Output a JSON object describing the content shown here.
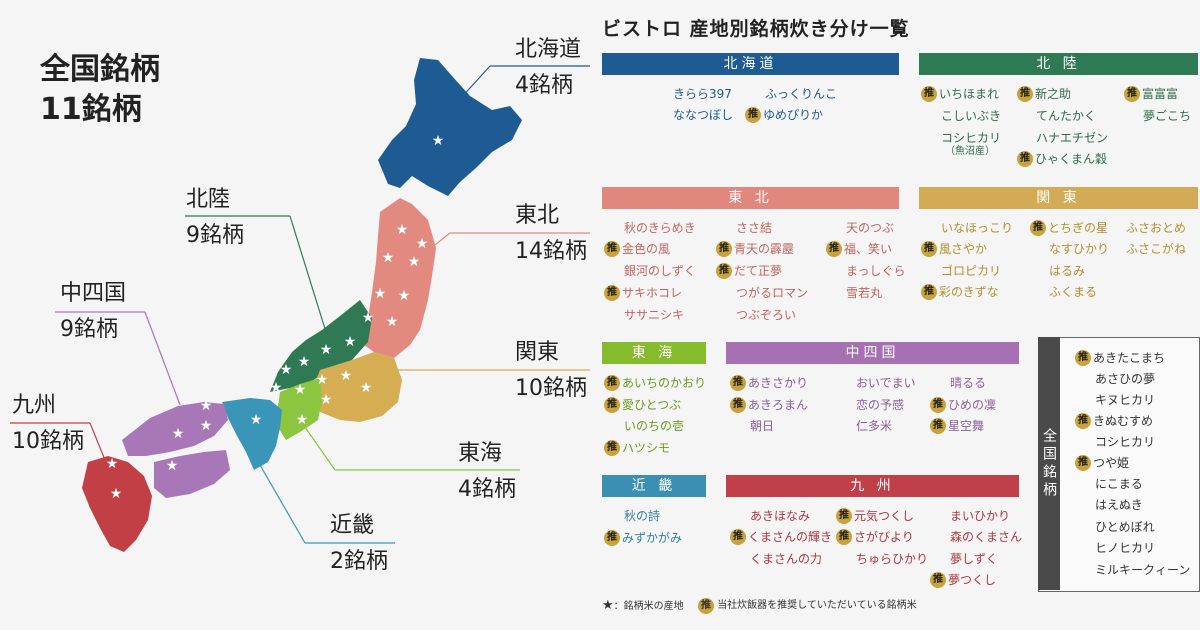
{
  "summary": {
    "line1": "全国銘柄",
    "line2": "11銘柄"
  },
  "title": "ビストロ 産地別銘柄炊き分け一覧",
  "badge_glyph": "推",
  "map_regions": {
    "hokkaido": {
      "name": "北海道",
      "count": "4銘柄",
      "color": "#1f5b93"
    },
    "tohoku": {
      "name": "東北",
      "count": "14銘柄",
      "color": "#e28a80"
    },
    "hokuriku": {
      "name": "北陸",
      "count": "9銘柄",
      "color": "#2f7a55"
    },
    "kanto": {
      "name": "関東",
      "count": "10銘柄",
      "color": "#d5ad52"
    },
    "tokai": {
      "name": "東海",
      "count": "4銘柄",
      "color": "#8cc53f"
    },
    "kinki": {
      "name": "近畿",
      "count": "2銘柄",
      "color": "#3a96b8"
    },
    "chushikoku": {
      "name": "中四国",
      "count": "9銘柄",
      "color": "#a877b8"
    },
    "kyushu": {
      "name": "九州",
      "count": "10銘柄",
      "color": "#c23f46"
    }
  },
  "headers": {
    "hokkaido": "北海道",
    "hokuriku": "北 陸",
    "tohoku": "東 北",
    "kanto": "関 東",
    "tokai": "東 海",
    "chushikoku": "中四国",
    "kinki": "近 畿",
    "kyushu": "九 州"
  },
  "header_colors": {
    "hokkaido": "#1f5b93",
    "hokuriku": "#2e7a55",
    "tohoku": "#e2877d",
    "kanto": "#d3ab55",
    "tokai": "#86bb2e",
    "chushikoku": "#a571b2",
    "kinki": "#3a8fb3",
    "kyushu": "#c0404a"
  },
  "lists": {
    "hokkaido": [
      "きらら397",
      "ふっくりんこ",
      "ななつぼし",
      "ゆめぴりか"
    ],
    "hokuriku": [
      "いちほまれ",
      "新之助",
      "富富富",
      "こしいぶき",
      "てんたかく",
      "夢ごこち",
      "コシヒカリ",
      "ハナエチゼン",
      "ひゃくまん穀"
    ],
    "hokuriku_sub": "（魚沼産）",
    "tohoku": [
      "秋のきらめき",
      "ささ結",
      "天のつぶ",
      "金色の風",
      "青天の霹靂",
      "福、笑い",
      "銀河のしずく",
      "だて正夢",
      "まっしぐら",
      "サキホコレ",
      "つがるロマン",
      "雪若丸",
      "ササニシキ",
      "つぶぞろい"
    ],
    "kanto": [
      "いなほっこり",
      "とちぎの星",
      "ふさおとめ",
      "風さやか",
      "なすひかり",
      "ふさこがね",
      "ゴロピカリ",
      "はるみ",
      "彩のきずな",
      "ふくまる"
    ],
    "tokai": [
      "あいちのかおり",
      "愛ひとつぶ",
      "いのちの壱",
      "ハツシモ"
    ],
    "chushikoku": [
      "あきさかり",
      "おいでまい",
      "晴るる",
      "あきろまん",
      "恋の予感",
      "ひめの凜",
      "朝日",
      "仁多米",
      "星空舞"
    ],
    "kinki": [
      "秋の詩",
      "みずかがみ"
    ],
    "kyushu": [
      "あきほなみ",
      "元気つくし",
      "まいひかり",
      "くまさんの輝き",
      "さがびより",
      "森のくまさん",
      "くまさんの力",
      "ちゅらひかり",
      "夢しずく",
      "夢つくし"
    ]
  },
  "national": {
    "label": "全国銘柄",
    "items": [
      "あきたこまち",
      "あさひの夢",
      "キヌヒカリ",
      "きぬむすめ",
      "コシヒカリ",
      "つや姫",
      "にこまる",
      "はえぬき",
      "ひとめぼれ",
      "ヒノヒカリ",
      "ミルキークィーン"
    ]
  },
  "legend": {
    "star_text": "：銘柄米の産地",
    "badge_text": "当社炊飯器を推奨していただいている銘柄米"
  }
}
